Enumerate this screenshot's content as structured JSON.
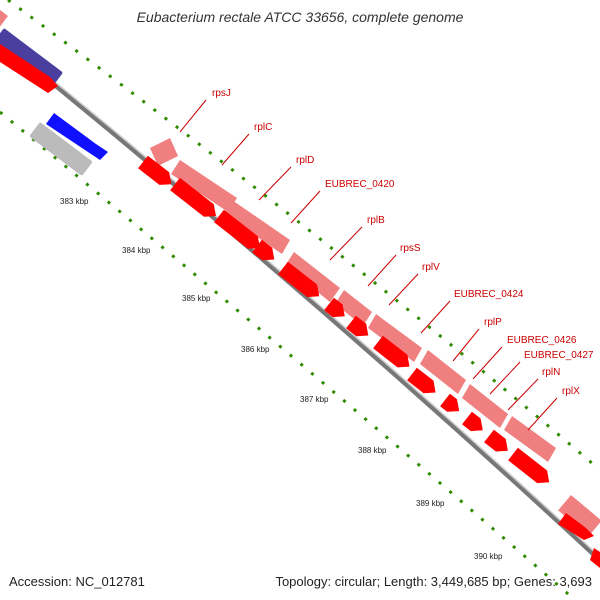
{
  "header": {
    "title": "Eubacterium rectale ATCC 33656, complete genome"
  },
  "footer": {
    "accession": "Accession: NC_012781",
    "summary": "Topology: circular; Length: 3,449,685 bp; Genes: 3,693"
  },
  "ruler": {
    "ticks": [
      "383 kbp",
      "384 kbp",
      "385 kbp",
      "386 kbp",
      "387 kbp",
      "388 kbp",
      "389 kbp",
      "390 kbp"
    ]
  },
  "genes": [
    "rpsJ",
    "rplC",
    "rplD",
    "EUBREC_0420",
    "rplB",
    "rpsS",
    "rplV",
    "EUBREC_0424",
    "rplP",
    "EUBREC_0426",
    "EUBREC_0427",
    "rplN",
    "rplX"
  ],
  "colors": {
    "cds_forward": "#ff0000",
    "gene_light": "#f08080",
    "backbone": "#888888",
    "gc_dots": "#2e8b00",
    "label": "#cc0000",
    "other_strand_dark": "#4a3f9f",
    "other_strand_blue": "#1010ff",
    "other_strand_gray": "#bbbbbb"
  }
}
